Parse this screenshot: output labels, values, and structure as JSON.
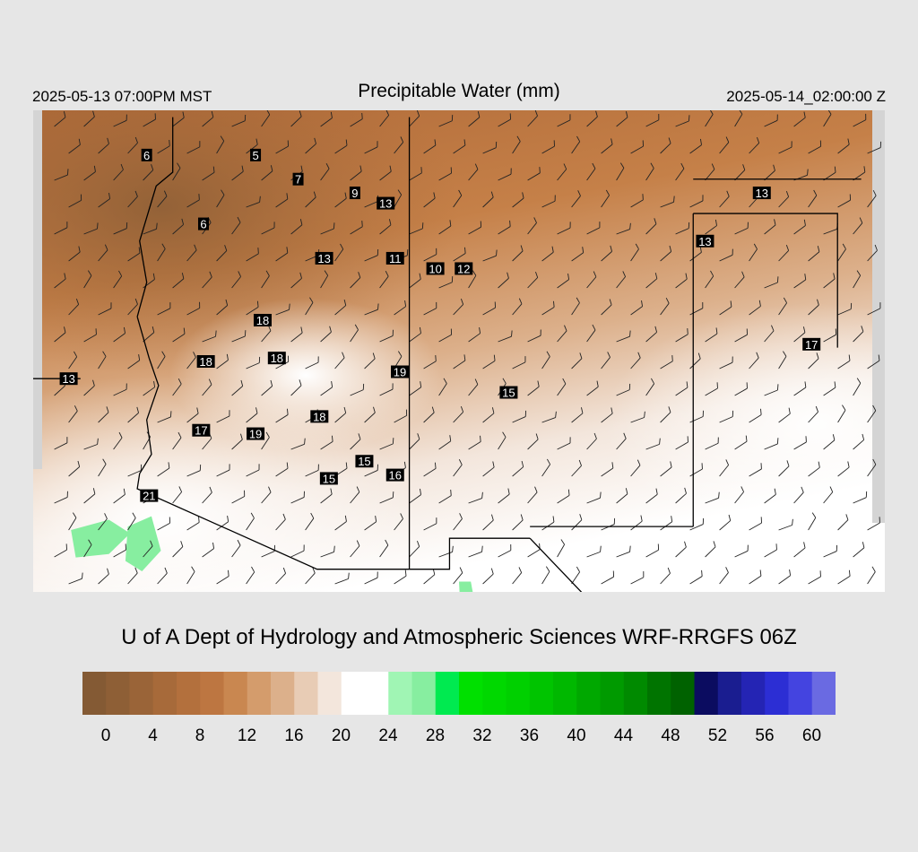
{
  "header": {
    "title": "Precipitable Water (mm)",
    "local_time": "2025-05-13 07:00PM MST",
    "utc_time": "2025-05-14_02:00:00 Z"
  },
  "footer": {
    "credit": "U of A Dept of Hydrology and Atmospheric Sciences WRF-RRGFS 06Z"
  },
  "colorbar": {
    "colors": [
      "#845a34",
      "#8e5f36",
      "#9a6438",
      "#a76a3a",
      "#b3703d",
      "#bd7641",
      "#c98750",
      "#d49c6c",
      "#dcb08b",
      "#e8ccb5",
      "#f3e6dc",
      "#ffffff",
      "#ffffff",
      "#a0f5b4",
      "#87eea0",
      "#00ea50",
      "#00e000",
      "#00d800",
      "#00d000",
      "#00c400",
      "#00b800",
      "#00a800",
      "#009a00",
      "#008a00",
      "#007400",
      "#006200",
      "#0b0c60",
      "#1a1d90",
      "#2424b4",
      "#2c2ed4",
      "#4444e0",
      "#6a6ae2"
    ],
    "tick_labels": [
      "0",
      "4",
      "8",
      "12",
      "16",
      "20",
      "24",
      "28",
      "32",
      "36",
      "40",
      "44",
      "48",
      "52",
      "56",
      "60"
    ]
  },
  "station_values": [
    {
      "value": "6",
      "lon": -114.6,
      "lat": 37.35
    },
    {
      "value": "5",
      "lon": -112.3,
      "lat": 37.35
    },
    {
      "value": "7",
      "lon": -111.4,
      "lat": 37.0
    },
    {
      "value": "9",
      "lon": -110.2,
      "lat": 36.8
    },
    {
      "value": "13",
      "lon": -109.55,
      "lat": 36.65
    },
    {
      "value": "6",
      "lon": -113.4,
      "lat": 36.35
    },
    {
      "value": "13",
      "lon": -110.85,
      "lat": 35.85
    },
    {
      "value": "11",
      "lon": -109.35,
      "lat": 35.85
    },
    {
      "value": "10",
      "lon": -108.5,
      "lat": 35.7
    },
    {
      "value": "12",
      "lon": -107.9,
      "lat": 35.7
    },
    {
      "value": "13",
      "lon": -102.8,
      "lat": 36.1
    },
    {
      "value": "13",
      "lon": -101.6,
      "lat": 36.8
    },
    {
      "value": "18",
      "lon": -112.15,
      "lat": 34.95
    },
    {
      "value": "18",
      "lon": -113.35,
      "lat": 34.35
    },
    {
      "value": "18",
      "lon": -111.85,
      "lat": 34.4
    },
    {
      "value": "19",
      "lon": -109.25,
      "lat": 34.2
    },
    {
      "value": "17",
      "lon": -100.55,
      "lat": 34.6
    },
    {
      "value": "15",
      "lon": -106.95,
      "lat": 33.9
    },
    {
      "value": "13",
      "lon": -116.25,
      "lat": 34.1
    },
    {
      "value": "18",
      "lon": -110.95,
      "lat": 33.55
    },
    {
      "value": "17",
      "lon": -113.45,
      "lat": 33.35
    },
    {
      "value": "19",
      "lon": -112.3,
      "lat": 33.3
    },
    {
      "value": "15",
      "lon": -110.0,
      "lat": 32.9
    },
    {
      "value": "16",
      "lon": -109.35,
      "lat": 32.7
    },
    {
      "value": "15",
      "lon": -110.75,
      "lat": 32.65
    },
    {
      "value": "21",
      "lon": -114.55,
      "lat": 32.4
    }
  ],
  "borders": [
    {
      "name": "state-border-ca-nv",
      "points": [
        [
          -120.0,
          37.9
        ],
        [
          -119.2,
          37.15
        ]
      ]
    },
    {
      "name": "state-border-nv-az",
      "points": [
        [
          -114.05,
          37.9
        ],
        [
          -114.05,
          37.1
        ],
        [
          -114.4,
          36.9
        ],
        [
          -114.75,
          36.1
        ],
        [
          -114.6,
          35.5
        ],
        [
          -114.8,
          35.0
        ]
      ]
    },
    {
      "name": "state-border-ca-az",
      "points": [
        [
          -114.8,
          35.0
        ],
        [
          -114.55,
          34.4
        ],
        [
          -114.35,
          34.0
        ],
        [
          -114.6,
          33.5
        ],
        [
          -114.5,
          33.0
        ],
        [
          -114.75,
          32.72
        ]
      ]
    },
    {
      "name": "intl-border-mex-az",
      "points": [
        [
          -114.75,
          32.72
        ],
        [
          -114.8,
          32.5
        ],
        [
          -111.0,
          31.33
        ],
        [
          -109.05,
          31.33
        ]
      ]
    },
    {
      "name": "state-border-ca-az-line",
      "points": [
        [
          -120.0,
          34.1
        ],
        [
          -116.0,
          34.1
        ]
      ]
    },
    {
      "name": "state-border-az-nm",
      "points": [
        [
          -109.05,
          37.9
        ],
        [
          -109.05,
          31.33
        ]
      ]
    },
    {
      "name": "intl-border-mex-nm",
      "points": [
        [
          -109.05,
          31.33
        ],
        [
          -108.2,
          31.33
        ],
        [
          -108.2,
          31.78
        ],
        [
          -106.5,
          31.78
        ]
      ]
    },
    {
      "name": "intl-border-mex-tx",
      "points": [
        [
          -106.5,
          31.78
        ],
        [
          -105.0,
          30.7
        ],
        [
          -104.5,
          29.6
        ],
        [
          -103.1,
          29.0
        ]
      ]
    },
    {
      "name": "state-border-nm-tx",
      "points": [
        [
          -103.05,
          31.95
        ],
        [
          -106.5,
          31.95
        ]
      ]
    },
    {
      "name": "state-border-nm-tx-east",
      "points": [
        [
          -103.05,
          36.5
        ],
        [
          -103.05,
          31.95
        ]
      ]
    },
    {
      "name": "state-border-tx-ok",
      "points": [
        [
          -103.05,
          36.5
        ],
        [
          -100.0,
          36.5
        ],
        [
          -100.0,
          34.55
        ]
      ]
    },
    {
      "name": "state-border-ok-ks",
      "points": [
        [
          -103.05,
          37.0
        ],
        [
          -99.5,
          37.0
        ]
      ]
    }
  ],
  "moist_areas": [
    {
      "name": "moisture-area-baja",
      "points": [
        [
          -116.2,
          31.9
        ],
        [
          -115.4,
          32.05
        ],
        [
          -114.95,
          31.85
        ],
        [
          -115.4,
          31.55
        ],
        [
          -116.1,
          31.5
        ]
      ]
    },
    {
      "name": "moisture-area-sonora",
      "points": [
        [
          -115.0,
          31.95
        ],
        [
          -114.5,
          32.1
        ],
        [
          -114.3,
          31.6
        ],
        [
          -114.7,
          31.3
        ],
        [
          -115.05,
          31.45
        ]
      ]
    },
    {
      "name": "moisture-area-chihuahua",
      "points": [
        [
          -108.0,
          31.15
        ],
        [
          -107.75,
          31.15
        ],
        [
          -107.55,
          30.4
        ],
        [
          -107.95,
          30.5
        ]
      ]
    }
  ]
}
